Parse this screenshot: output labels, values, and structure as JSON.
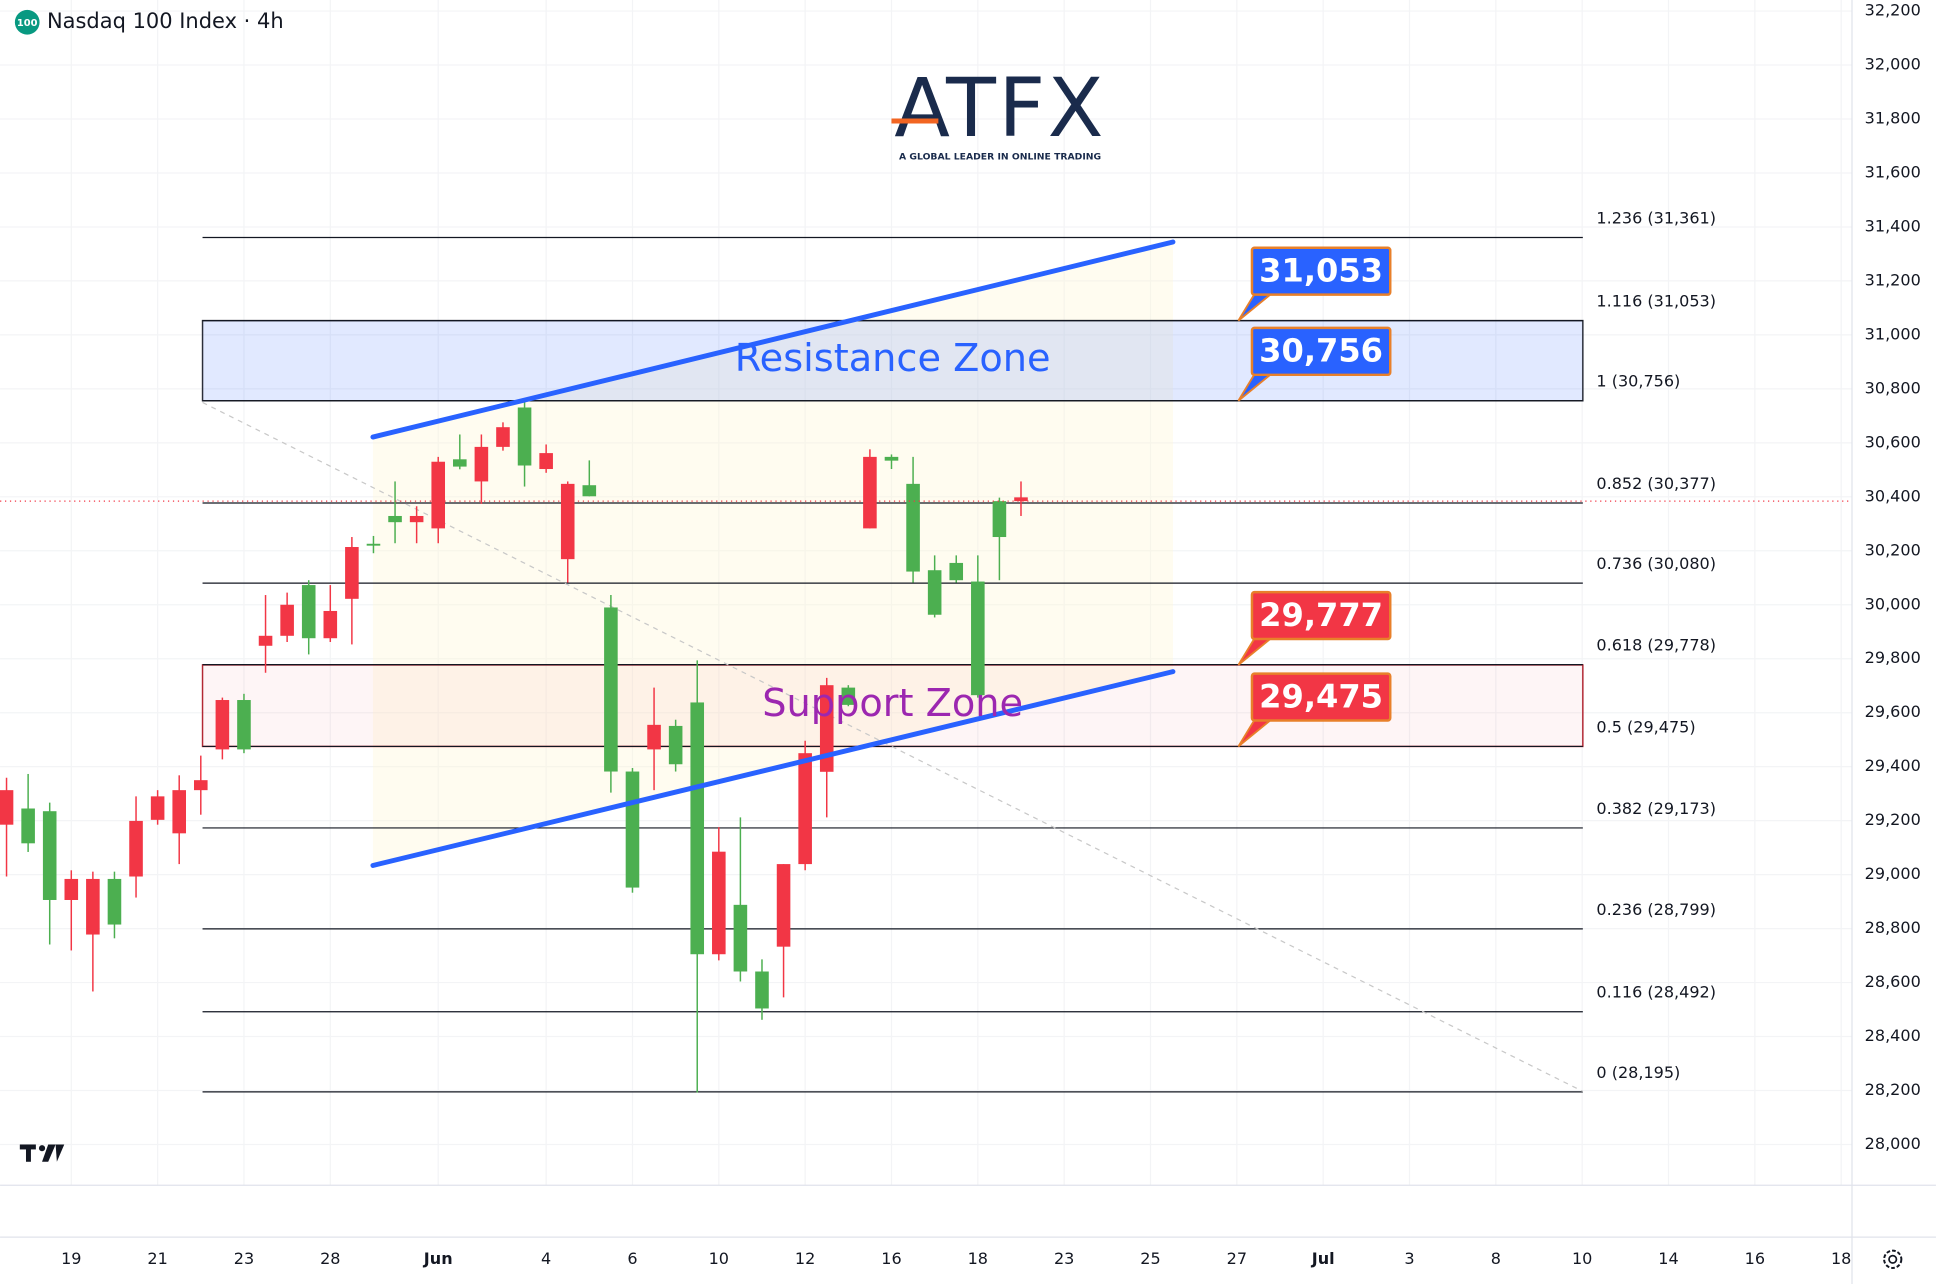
{
  "chart_data": {
    "type": "candlestick",
    "title": "Nasdaq 100 Index · 4h",
    "icon_label": "100",
    "logo": {
      "name": "ATFX",
      "tagline": "A GLOBAL LEADER IN ONLINE TRADING"
    },
    "up_color": "#4caf50",
    "down_color": "#f23645",
    "x": [
      0,
      1,
      2,
      3,
      4,
      5,
      6,
      7,
      8,
      9,
      10,
      11,
      12,
      13,
      14,
      15,
      16,
      17,
      18,
      19,
      20,
      21,
      22,
      23,
      24,
      25,
      26,
      27,
      28,
      29,
      30,
      31,
      32,
      33,
      34,
      35,
      36,
      37,
      38,
      39,
      40,
      41,
      42,
      43,
      44,
      45,
      46,
      47
    ],
    "open": [
      29313,
      29116,
      28906,
      28984,
      28984,
      28815,
      29199,
      29290,
      29313,
      29350,
      29647,
      29464,
      29885,
      30000,
      29876,
      29977,
      30214,
      30219,
      30306,
      30329,
      30530,
      30512,
      30585,
      30658,
      30516,
      30562,
      30448,
      30402,
      29382,
      28952,
      29555,
      29409,
      28705,
      29085,
      28641,
      28504,
      29039,
      29450,
      29702,
      29629,
      30548,
      30534,
      30123,
      29963,
      30091,
      29665,
      30251,
      30398
    ],
    "high": [
      29359,
      29373,
      29267,
      29016,
      29011,
      29011,
      29290,
      29313,
      29368,
      29441,
      29656,
      29670,
      30036,
      30045,
      30091,
      30073,
      30251,
      30255,
      30457,
      30365,
      30548,
      30631,
      30631,
      30676,
      30754,
      30594,
      30457,
      30535,
      30036,
      29395,
      29693,
      29574,
      29794,
      29176,
      29212,
      28686,
      29039,
      29496,
      29729,
      29702,
      30576,
      30557,
      30548,
      30183,
      30183,
      30183,
      30397,
      30457
    ],
    "low": [
      28993,
      29084,
      28741,
      28719,
      28567,
      28764,
      28915,
      29185,
      29039,
      29222,
      29427,
      29450,
      29748,
      29862,
      29816,
      29862,
      29853,
      30191,
      30228,
      30228,
      30228,
      30502,
      30374,
      30571,
      30438,
      30489,
      30082,
      30402,
      29304,
      28933,
      29313,
      29382,
      28192,
      28682,
      28604,
      28462,
      28545,
      29016,
      29212,
      29624,
      30283,
      30503,
      30082,
      29953,
      30082,
      29656,
      30091,
      30329
    ],
    "close": [
      29185,
      29245,
      29235,
      28906,
      28778,
      28984,
      28993,
      29203,
      29153,
      29313,
      29464,
      29647,
      29848,
      29885,
      30073,
      29876,
      30022,
      30226,
      30329,
      30306,
      30283,
      30539,
      30457,
      30585,
      30731,
      30503,
      30169,
      30443,
      29990,
      29382,
      29464,
      29551,
      29638,
      28705,
      28888,
      28641,
      28733,
      29039,
      29381,
      29693,
      30283,
      30548,
      30448,
      30128,
      30155,
      30086,
      30384,
      30384
    ],
    "xlim": [
      -0.3,
      85.5
    ],
    "xticks": [
      {
        "value": 3,
        "label": "19"
      },
      {
        "value": 7,
        "label": "21"
      },
      {
        "value": 11,
        "label": "23"
      },
      {
        "value": 15,
        "label": "28"
      },
      {
        "value": 20,
        "label": "Jun"
      },
      {
        "value": 25,
        "label": "4"
      },
      {
        "value": 29,
        "label": "6"
      },
      {
        "value": 33,
        "label": "10"
      },
      {
        "value": 37,
        "label": "12"
      },
      {
        "value": 41,
        "label": "16"
      },
      {
        "value": 45,
        "label": "18"
      },
      {
        "value": 49,
        "label": "23"
      },
      {
        "value": 53,
        "label": "25"
      },
      {
        "value": 57,
        "label": "27"
      },
      {
        "value": 61,
        "label": "Jul"
      },
      {
        "value": 65,
        "label": "3"
      },
      {
        "value": 69,
        "label": "8"
      },
      {
        "value": 73,
        "label": "10"
      },
      {
        "value": 77,
        "label": "14"
      },
      {
        "value": 81,
        "label": "16"
      },
      {
        "value": 85,
        "label": "18"
      }
    ],
    "ylim": [
      27849,
      32241
    ],
    "yticks": [
      {
        "value": 28000,
        "label": "28,000"
      },
      {
        "value": 28200,
        "label": "28,200"
      },
      {
        "value": 28400,
        "label": "28,400"
      },
      {
        "value": 28600,
        "label": "28,600"
      },
      {
        "value": 28800,
        "label": "28,800"
      },
      {
        "value": 29000,
        "label": "29,000"
      },
      {
        "value": 29200,
        "label": "29,200"
      },
      {
        "value": 29400,
        "label": "29,400"
      },
      {
        "value": 29600,
        "label": "29,600"
      },
      {
        "value": 29800,
        "label": "29,800"
      },
      {
        "value": 30000,
        "label": "30,000"
      },
      {
        "value": 30200,
        "label": "30,200"
      },
      {
        "value": 30400,
        "label": "30,400"
      },
      {
        "value": 30600,
        "label": "30,600"
      },
      {
        "value": 30800,
        "label": "30,800"
      },
      {
        "value": 31000,
        "label": "31,000"
      },
      {
        "value": 31200,
        "label": "31,200"
      },
      {
        "value": 31400,
        "label": "31,400"
      },
      {
        "value": 31600,
        "label": "31,600"
      },
      {
        "value": 31800,
        "label": "31,800"
      },
      {
        "value": 32000,
        "label": "32,000"
      },
      {
        "value": 32200,
        "label": "32,200"
      }
    ],
    "fib_levels": [
      {
        "value": 31361,
        "label": "1.236 (31,361)"
      },
      {
        "value": 31053,
        "label": "1.116 (31,053)"
      },
      {
        "value": 30756,
        "label": "1 (30,756)"
      },
      {
        "value": 30377,
        "label": "0.852 (30,377)"
      },
      {
        "value": 30080,
        "label": "0.736 (30,080)"
      },
      {
        "value": 29778,
        "label": "0.618 (29,778)"
      },
      {
        "value": 29475,
        "label": "0.5 (29,475)"
      },
      {
        "value": 29173,
        "label": "0.382 (29,173)"
      },
      {
        "value": 28799,
        "label": "0.236 (28,799)"
      },
      {
        "value": 28492,
        "label": "0.116 (28,492)"
      },
      {
        "value": 28195,
        "label": "0 (28,195)"
      }
    ],
    "zones": [
      {
        "label": "Resistance Zone",
        "low": 30756,
        "high": 31053,
        "fill": "#2962ff",
        "border": "#2a2e39",
        "text_color": "#2962ff"
      },
      {
        "label": "Support Zone",
        "low": 29475,
        "high": 29777,
        "fill": "#f23645",
        "border": "#b22833",
        "text_color": "#9c27b0"
      }
    ],
    "callouts": [
      {
        "value": 31053,
        "label": "31,053",
        "color": "#2962ff"
      },
      {
        "value": 30756,
        "label": "30,756",
        "color": "#2962ff"
      },
      {
        "value": 29777,
        "label": "29,777",
        "color": "#f23645"
      },
      {
        "value": 29475,
        "label": "29,475",
        "color": "#f23645"
      }
    ]
  }
}
